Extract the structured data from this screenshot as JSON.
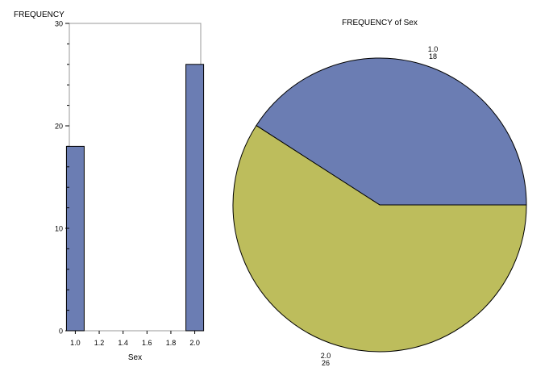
{
  "chart_data": [
    {
      "type": "bar",
      "ylabel": "FREQUENCY",
      "xlabel": "Sex",
      "categories": [
        "1.0",
        "2.0"
      ],
      "values": [
        18,
        26
      ],
      "x_values": [
        1.0,
        2.0
      ],
      "xlim": [
        0.95,
        2.05
      ],
      "ylim": [
        0,
        30
      ],
      "yticks": [
        "0",
        "10",
        "20",
        "30"
      ],
      "xticks": [
        "1.0",
        "1.2",
        "1.4",
        "1.6",
        "1.8",
        "2.0"
      ],
      "grid": false,
      "colors": {
        "bar": "#6b7db3",
        "outline": "#000000"
      }
    },
    {
      "type": "pie",
      "title": "FREQUENCY of Sex",
      "slices": [
        {
          "category": "1.0",
          "count": "18",
          "value": 18,
          "color": "#6b7db3"
        },
        {
          "category": "2.0",
          "count": "26",
          "value": 26,
          "color": "#bdbd5c"
        }
      ]
    }
  ]
}
